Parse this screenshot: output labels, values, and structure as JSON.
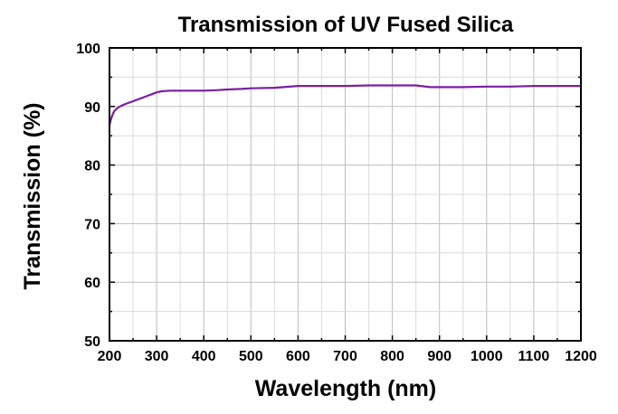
{
  "chart_data": {
    "type": "line",
    "title": "Transmission of UV Fused Silica",
    "xlabel": "Wavelength (nm)",
    "ylabel": "Transmission (%)",
    "xlim": [
      200,
      1200
    ],
    "ylim": [
      50,
      100
    ],
    "x_ticks": [
      200,
      300,
      400,
      500,
      600,
      700,
      800,
      900,
      1000,
      1100,
      1200
    ],
    "y_ticks": [
      50,
      60,
      70,
      80,
      90,
      100
    ],
    "x_tick_labels": [
      "200",
      "300",
      "400",
      "500",
      "600",
      "700",
      "800",
      "900",
      "1000",
      "1100",
      "1200"
    ],
    "y_tick_labels": [
      "50",
      "60",
      "70",
      "80",
      "90",
      "100"
    ],
    "grid": true,
    "series": [
      {
        "name": "UV Fused Silica",
        "color": "#7b1fa2",
        "x": [
          200,
          203,
          206,
          210,
          215,
          220,
          230,
          240,
          250,
          260,
          270,
          280,
          290,
          300,
          310,
          330,
          350,
          380,
          400,
          430,
          450,
          480,
          500,
          550,
          600,
          650,
          700,
          750,
          800,
          850,
          880,
          900,
          950,
          1000,
          1050,
          1100,
          1150,
          1200
        ],
        "y": [
          86.8,
          87.8,
          88.5,
          89.2,
          89.6,
          89.9,
          90.3,
          90.6,
          90.9,
          91.2,
          91.5,
          91.8,
          92.1,
          92.4,
          92.6,
          92.7,
          92.7,
          92.7,
          92.7,
          92.8,
          92.9,
          93.0,
          93.1,
          93.2,
          93.5,
          93.5,
          93.5,
          93.6,
          93.6,
          93.6,
          93.3,
          93.3,
          93.3,
          93.4,
          93.4,
          93.5,
          93.5,
          93.5
        ]
      }
    ]
  }
}
